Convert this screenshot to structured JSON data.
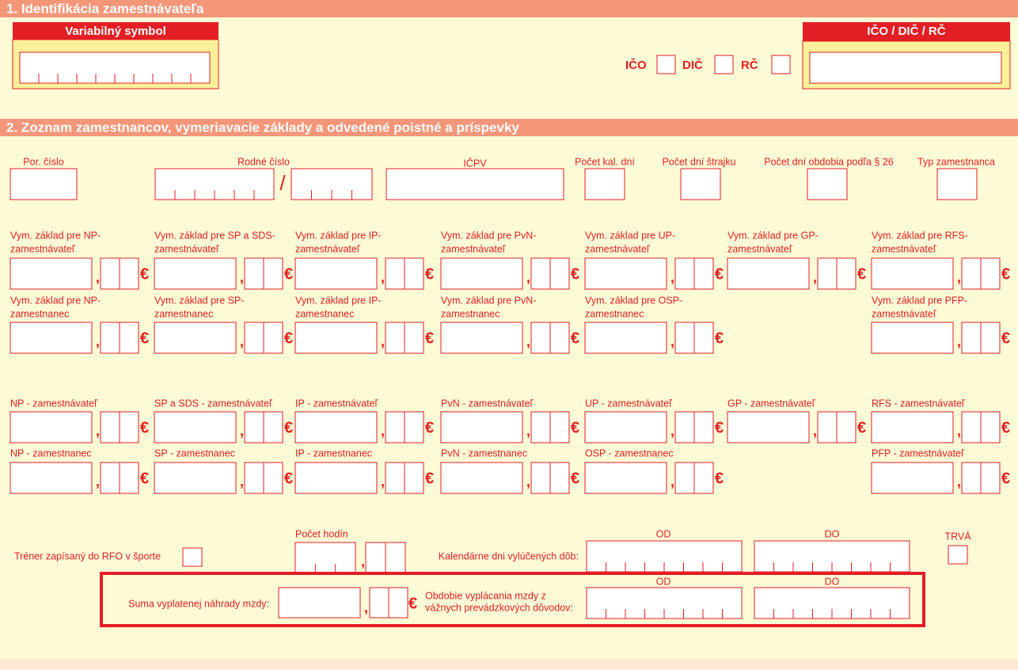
{
  "section1": {
    "title": "1. Identifikácia zamestnávateľa",
    "variable_symbol": "Variabilný symbol",
    "id_box": "IČO / DIČ / RČ",
    "id_types": [
      "IČO",
      "DIČ",
      "RČ"
    ]
  },
  "section2": {
    "title": "2. Zoznam zamestnancov, vymeriavacie základy a odvedené poistné a príspevky",
    "currency": "€",
    "decimal_separator": ",",
    "birth_number_separator": "/",
    "employee_fields": [
      "Por. číslo",
      "Rodné číslo",
      "IČPV",
      "Počet kal. dní",
      "Počet dní štrajku",
      "Počet dní obdobia podľa § 26",
      "Typ zamestnanca"
    ],
    "assessment_base_employer": [
      [
        "Vym. základ pre NP-",
        "zamestnávateľ"
      ],
      [
        "Vym. základ pre SP a SDS-",
        "zamestnávateľ"
      ],
      [
        "Vym. základ pre IP-",
        "zamestnávateľ"
      ],
      [
        "Vym. základ pre PvN-",
        "zamestnávateľ"
      ],
      [
        "Vym. základ pre UP-",
        "zamestnávateľ"
      ],
      [
        "Vym. základ pre GP-",
        "zamestnávateľ"
      ],
      [
        "Vym. základ pre RFS-",
        "zamestnávateľ"
      ]
    ],
    "assessment_base_employee": [
      [
        "Vym. základ pre NP-",
        "zamestnanec"
      ],
      [
        "Vym. základ pre SP-",
        "zamestnanec"
      ],
      [
        "Vym. základ pre IP-",
        "zamestnanec"
      ],
      [
        "Vym. základ pre PvN-",
        "zamestnanec"
      ],
      [
        "Vym. základ pre OSP-",
        "zamestnanec"
      ],
      [
        "Vym. základ pre PFP-",
        "zamestnávateľ"
      ]
    ],
    "contribution_employer": [
      "NP - zamestnávateľ",
      "SP a SDS - zamestnávateľ",
      "IP - zamestnávateľ",
      "PvN - zamestnávateľ",
      "UP - zamestnávateľ",
      "GP - zamestnávateľ",
      "RFS - zamestnávateľ"
    ],
    "contribution_employee": [
      "NP - zamestnanec",
      "SP - zamestnanec",
      "IP - zamestnanec",
      "PvN - zamestnanec",
      "OSP - zamestnanec",
      "PFP - zamestnávateľ"
    ],
    "trainer": "Tréner zapísaný do RFO v športe",
    "hours": "Počet hodín",
    "excluded_days": "Kalendárne dni vylúčených dôb:",
    "from": "OD",
    "to": "DO",
    "ongoing": "TRVÁ",
    "compensation": "Suma vyplatenej náhrady mzdy:",
    "compensation_period": [
      "Obdobie vyplácania mzdy z",
      "vážnych prevádzkových dôvodov:"
    ]
  }
}
